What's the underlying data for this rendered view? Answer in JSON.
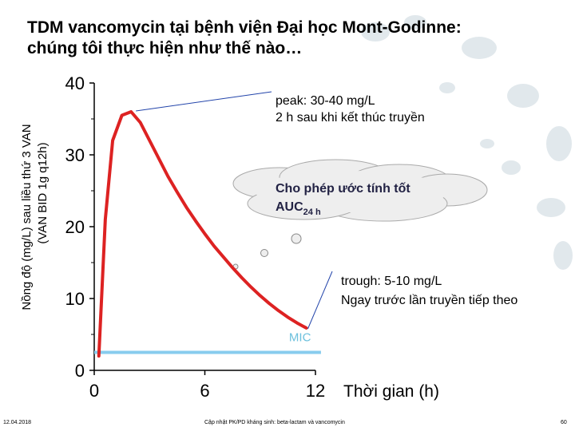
{
  "slide": {
    "title_line1": "TDM vancomycin tại bệnh viện Đại học Mont-Godinne:",
    "title_line2": "chúng tôi thực hiện như thế nào…",
    "footer_date": "12.04.2018",
    "footer_center": "Cập nhật PK/PD kháng sinh: beta-lactam và vancomycin",
    "footer_page": "60"
  },
  "colors": {
    "curve": "#dd2222",
    "mic_line": "#88ccee",
    "mic_text": "#6cc0dd",
    "axis": "#000000",
    "cloud_fill": "#eeeeee",
    "cloud_stroke": "#aaaaaa",
    "decor": "#c9d6dd"
  },
  "chart_data": {
    "type": "line",
    "xlabel": "Thời gian (h)",
    "ylabel_line1": "Nồng độ (mg/L) sau liều thứ 3 VAN",
    "ylabel_line2": "(VAN BID 1g q12h)",
    "xlim": [
      0,
      12
    ],
    "ylim": [
      0,
      40
    ],
    "x_ticks": [
      "0",
      "6",
      "12"
    ],
    "y_ticks": [
      "0",
      "10",
      "20",
      "30",
      "40"
    ],
    "series": [
      {
        "x": [
          0.25,
          0.6,
          1.0,
          1.5,
          2.0,
          2.5,
          3.0,
          3.5,
          4.0,
          4.5,
          5.0,
          5.5,
          6.0,
          6.5,
          7.0,
          7.5,
          8.0,
          8.5,
          9.0,
          9.5,
          10.0,
          10.5,
          11.0,
          11.5
        ],
        "y": [
          2,
          21,
          32,
          35.5,
          36,
          34.5,
          32,
          29.5,
          27,
          24.8,
          22.7,
          20.8,
          19,
          17.3,
          15.8,
          14.3,
          12.9,
          11.6,
          10.4,
          9.3,
          8.3,
          7.4,
          6.6,
          5.9
        ]
      }
    ],
    "mic": {
      "label": "MIC",
      "y": 2.5,
      "x_start": 0,
      "x_end": 12.3
    },
    "annotations": {
      "peak_line1": "peak: 30-40 mg/L",
      "peak_line2": "2 h sau khi kết thúc truyền",
      "peak_point": {
        "x": 2.0,
        "y": 36
      },
      "auc_line1": "Cho phép ước tính tốt",
      "auc_main": "AUC",
      "auc_sub": "24 h",
      "trough_line1": "trough: 5-10 mg/L",
      "trough_line2": "Ngay trước lần truyền tiếp theo",
      "trough_point": {
        "x": 11.5,
        "y": 6
      }
    }
  }
}
